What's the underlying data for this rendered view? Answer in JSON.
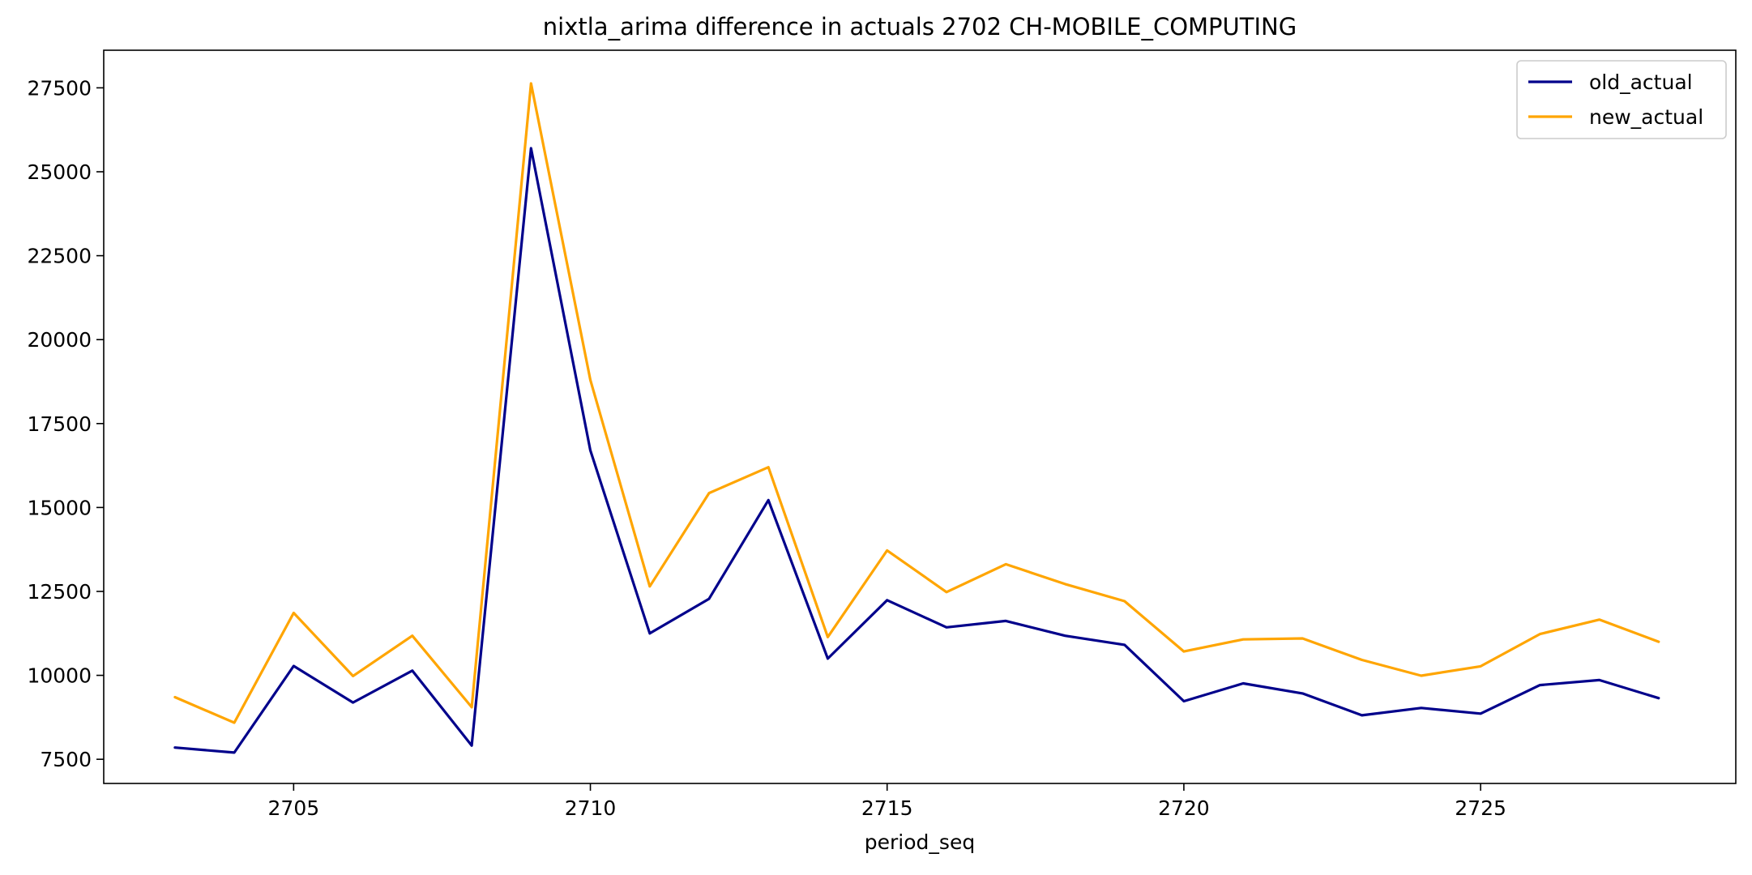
{
  "chart_data": {
    "type": "line",
    "title": "nixtla_arima difference in actuals 2702 CH-MOBILE_COMPUTING",
    "xlabel": "period_seq",
    "ylabel": "",
    "x": [
      2703,
      2704,
      2705,
      2706,
      2707,
      2708,
      2709,
      2710,
      2711,
      2712,
      2713,
      2714,
      2715,
      2716,
      2717,
      2718,
      2719,
      2720,
      2721,
      2722,
      2723,
      2724,
      2725,
      2726,
      2727,
      2728
    ],
    "series": [
      {
        "name": "old_actual",
        "color": "#00008b",
        "values": [
          7850,
          7700,
          10280,
          9190,
          10140,
          7910,
          25700,
          16700,
          11250,
          12280,
          15220,
          10500,
          12240,
          11430,
          11620,
          11180,
          10910,
          9230,
          9760,
          9460,
          8810,
          9030,
          8860,
          9710,
          9860,
          9320
        ]
      },
      {
        "name": "new_actual",
        "color": "#ffa500",
        "values": [
          9350,
          8590,
          11860,
          9980,
          11180,
          9050,
          27630,
          18800,
          12650,
          15430,
          16200,
          11140,
          13720,
          12480,
          13310,
          12720,
          12210,
          10710,
          11070,
          11100,
          10460,
          9990,
          10270,
          11230,
          11660,
          11000
        ]
      }
    ],
    "xlim": [
      2701.8,
      2729.3
    ],
    "ylim": [
      6780,
      28620
    ],
    "xticks": [
      2705,
      2710,
      2715,
      2720,
      2725
    ],
    "xtick_labels": [
      "2705",
      "2710",
      "2715",
      "2720",
      "2725"
    ],
    "yticks": [
      7500,
      10000,
      12500,
      15000,
      17500,
      20000,
      22500,
      25000,
      27500
    ],
    "ytick_labels": [
      "7500",
      "10000",
      "12500",
      "15000",
      "17500",
      "20000",
      "22500",
      "25000",
      "27500"
    ],
    "grid": false,
    "legend_position": "top-right"
  }
}
